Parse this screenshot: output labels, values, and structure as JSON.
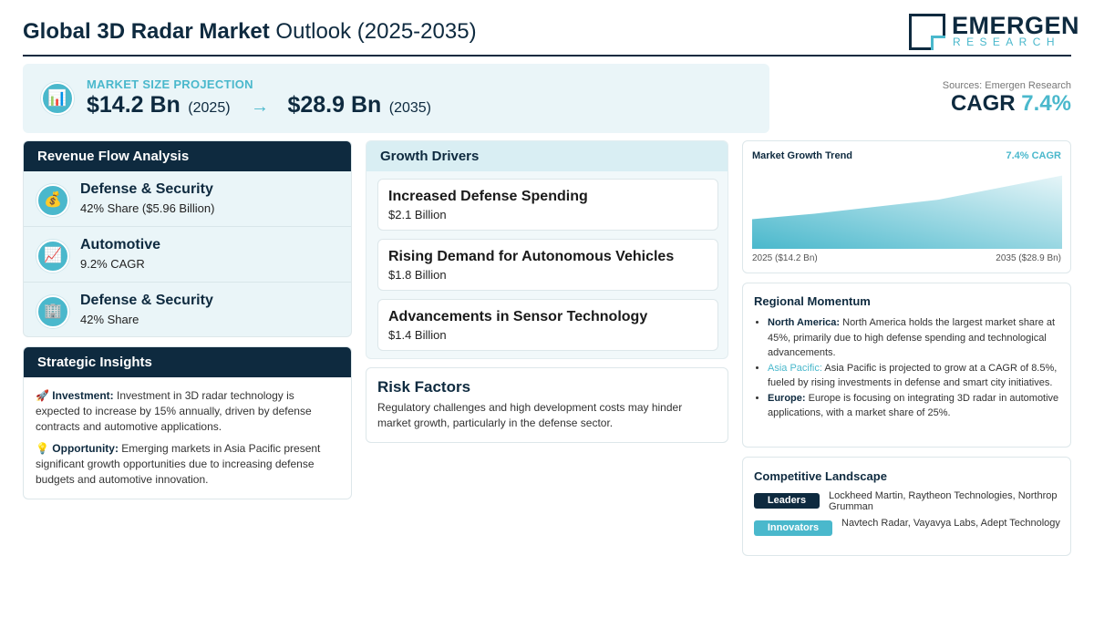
{
  "header": {
    "title_bold": "Global 3D Radar Market",
    "title_rest": "Outlook (2025-2035)",
    "logo_main": "EMERGEN",
    "logo_sub": "RESEARCH"
  },
  "projection": {
    "label": "MARKET SIZE PROJECTION",
    "start_value": "$14.2 Bn",
    "start_year": "(2025)",
    "arrow": "→",
    "end_value": "$28.9 Bn",
    "end_year": "(2035)",
    "icon": "chart-icon"
  },
  "sources": "Sources: Emergen Research",
  "cagr": {
    "label": "CAGR",
    "value": "7.4%"
  },
  "revenue_flow": {
    "heading": "Revenue Flow Analysis",
    "items": [
      {
        "icon": "money-bag-icon",
        "title": "Defense & Security",
        "sub": "42% Share ($5.96 Billion)"
      },
      {
        "icon": "trend-chart-icon",
        "title": "Automotive",
        "sub": "9.2% CAGR"
      },
      {
        "icon": "building-icon",
        "title": "Defense & Security",
        "sub": "42% Share"
      }
    ]
  },
  "strategic": {
    "heading": "Strategic Insights",
    "items": [
      {
        "icon": "rocket-icon",
        "label": "Investment:",
        "text": "Investment in 3D radar technology is expected to increase by 15% annually, driven by defense contracts and automotive applications."
      },
      {
        "icon": "lightbulb-icon",
        "label": "Opportunity:",
        "text": "Emerging markets in Asia Pacific present significant growth opportunities due to increasing defense budgets and automotive innovation."
      }
    ]
  },
  "drivers": {
    "heading": "Growth Drivers",
    "items": [
      {
        "title": "Increased Defense Spending",
        "value": "$2.1 Billion"
      },
      {
        "title": "Rising Demand for Autonomous Vehicles",
        "value": "$1.8 Billion"
      },
      {
        "title": "Advancements in Sensor Technology",
        "value": "$1.4 Billion"
      }
    ]
  },
  "risk": {
    "heading": "Risk Factors",
    "text": "Regulatory challenges and high development costs may hinder market growth, particularly in the defense sector."
  },
  "trend": {
    "heading": "Market Growth Trend",
    "cagr_label": "7.4% CAGR",
    "start_label": "2025 ($14.2 Bn)",
    "end_label": "2035 ($28.9 Bn)",
    "colors": {
      "area_top": "#4ab8cc",
      "area_light": "#e6f5f8"
    }
  },
  "chart_data": {
    "type": "area",
    "x": [
      2025,
      2035
    ],
    "values": [
      14.2,
      28.9
    ],
    "title": "Market Growth Trend",
    "xlabel": "",
    "ylabel": ""
  },
  "regional": {
    "heading": "Regional Momentum",
    "items": [
      {
        "name": "North America:",
        "text": "North America holds the largest market share at 45%, primarily due to high defense spending and technological advancements."
      },
      {
        "name": "Asia Pacific:",
        "text": "Asia Pacific is projected to grow at a CAGR of 8.5%, fueled by rising investments in defense and smart city initiatives."
      },
      {
        "name": "Europe:",
        "text": "Europe is focusing on integrating 3D radar in automotive applications, with a market share of 25%."
      }
    ]
  },
  "competitive": {
    "heading": "Competitive Landscape",
    "leaders_label": "Leaders",
    "leaders_text": "Lockheed Martin, Raytheon Technologies, Northrop Grumman",
    "innovators_label": "Innovators",
    "innovators_text": "Navtech Radar, Vayavya Labs, Adept Technology"
  },
  "colors": {
    "navy": "#0e2a3f",
    "accent": "#4ab8cc",
    "panel": "#eaf5f8"
  }
}
